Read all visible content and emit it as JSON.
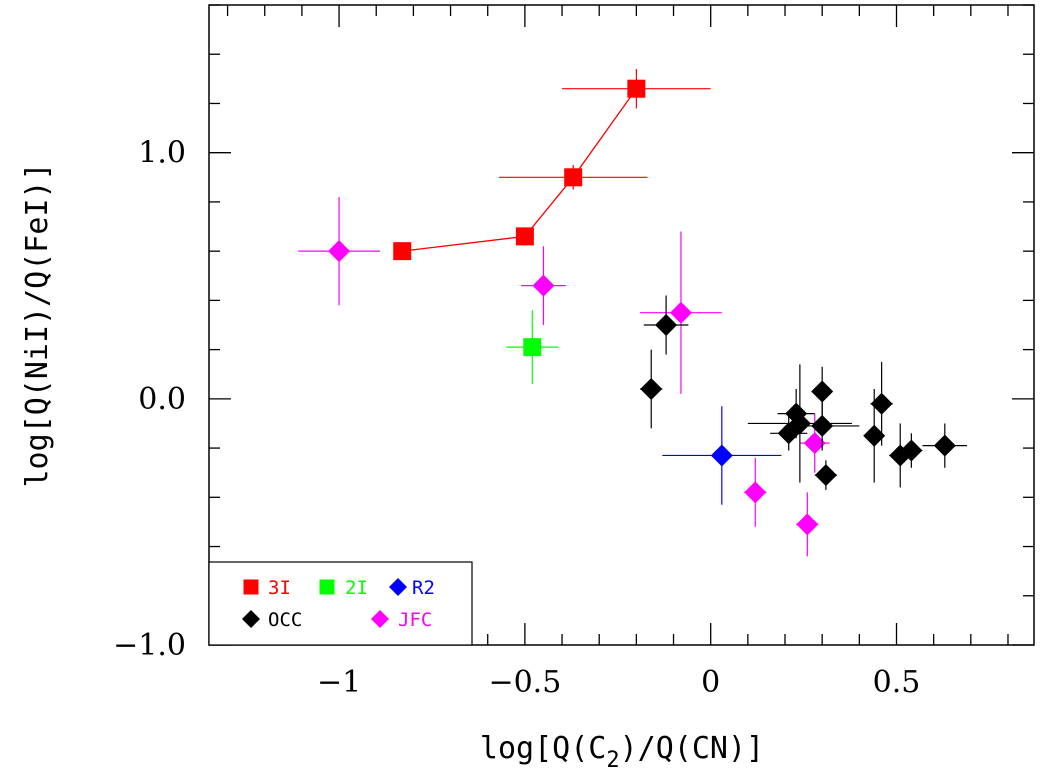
{
  "chart_data": {
    "type": "scatter",
    "title": "",
    "xlabel": {
      "pre": "log[Q(C",
      "sub": "2",
      "post": ")/Q(CN)]"
    },
    "ylabel": "log[Q(NiI)/Q(FeI)]",
    "xlim": [
      -1.35,
      0.87
    ],
    "ylim": [
      -1.0,
      1.6
    ],
    "x_major_ticks": [
      -1,
      -0.5,
      0,
      0.5
    ],
    "x_tick_labels": [
      "−1",
      "−0.5",
      "0",
      "0.5"
    ],
    "y_major_ticks": [
      -1,
      0,
      1
    ],
    "y_tick_labels": [
      "−1.0",
      "0.0",
      "1.0"
    ],
    "legend_position": "bottom-left",
    "legend": [
      {
        "label": "3I",
        "series": "3I"
      },
      {
        "label": "2I",
        "series": "2I"
      },
      {
        "label": "R2",
        "series": "R2"
      },
      {
        "label": "OCC",
        "series": "OCC"
      },
      {
        "label": "JFC",
        "series": "JFC"
      }
    ],
    "series": [
      {
        "name": "3I",
        "marker": "square",
        "color": "#ff0000",
        "connected": true,
        "points": [
          {
            "x": -0.83,
            "y": 0.6,
            "xerr": 0,
            "yerr": 0
          },
          {
            "x": -0.5,
            "y": 0.66,
            "xerr": 0,
            "yerr": 0
          },
          {
            "x": -0.37,
            "y": 0.9,
            "xerr": 0.2,
            "yerr": 0.05
          },
          {
            "x": -0.2,
            "y": 1.26,
            "xerr": 0.2,
            "yerr": 0.08
          }
        ]
      },
      {
        "name": "2I",
        "marker": "square",
        "color": "#00ff00",
        "points": [
          {
            "x": -0.48,
            "y": 0.21,
            "xerr": 0.07,
            "yerr": 0.15
          }
        ]
      },
      {
        "name": "R2",
        "marker": "diamond",
        "color": "#0000ff",
        "points": [
          {
            "x": 0.03,
            "y": -0.23,
            "xerr": 0.16,
            "yerr": 0.2
          }
        ]
      },
      {
        "name": "OCC",
        "marker": "diamond",
        "color": "#000000",
        "points": [
          {
            "x": -0.16,
            "y": 0.04,
            "xerr": 0.03,
            "yerr": 0.16
          },
          {
            "x": -0.12,
            "y": 0.3,
            "xerr": 0.06,
            "yerr": 0.12
          },
          {
            "x": 0.21,
            "y": -0.14,
            "xerr": 0.05,
            "yerr": 0.07
          },
          {
            "x": 0.23,
            "y": -0.06,
            "xerr": 0.05,
            "yerr": 0.1
          },
          {
            "x": 0.24,
            "y": -0.1,
            "xerr": 0.14,
            "yerr": 0.24
          },
          {
            "x": 0.3,
            "y": -0.11,
            "xerr": 0.1,
            "yerr": 0.1
          },
          {
            "x": 0.3,
            "y": 0.03,
            "xerr": 0,
            "yerr": 0.1
          },
          {
            "x": 0.31,
            "y": -0.31,
            "xerr": 0.03,
            "yerr": 0.06
          },
          {
            "x": 0.44,
            "y": -0.15,
            "xerr": 0.02,
            "yerr": 0.19
          },
          {
            "x": 0.46,
            "y": -0.02,
            "xerr": 0.03,
            "yerr": 0.17
          },
          {
            "x": 0.51,
            "y": -0.23,
            "xerr": 0.03,
            "yerr": 0.13
          },
          {
            "x": 0.54,
            "y": -0.21,
            "xerr": 0.03,
            "yerr": 0.07
          },
          {
            "x": 0.63,
            "y": -0.19,
            "xerr": 0.06,
            "yerr": 0.09
          }
        ]
      },
      {
        "name": "JFC",
        "marker": "diamond",
        "color": "#ff00ff",
        "points": [
          {
            "x": -1.0,
            "y": 0.6,
            "xerr": 0.11,
            "yerr": 0.22
          },
          {
            "x": -0.45,
            "y": 0.46,
            "xerr": 0.06,
            "yerr": 0.16
          },
          {
            "x": -0.08,
            "y": 0.35,
            "xerr": 0.11,
            "yerr": 0.33
          },
          {
            "x": 0.12,
            "y": -0.38,
            "xerr": 0.03,
            "yerr": 0.14
          },
          {
            "x": 0.26,
            "y": -0.51,
            "xerr": 0.03,
            "yerr": 0.13
          },
          {
            "x": 0.28,
            "y": -0.18,
            "xerr": 0.04,
            "yerr": 0.12
          }
        ]
      }
    ]
  }
}
